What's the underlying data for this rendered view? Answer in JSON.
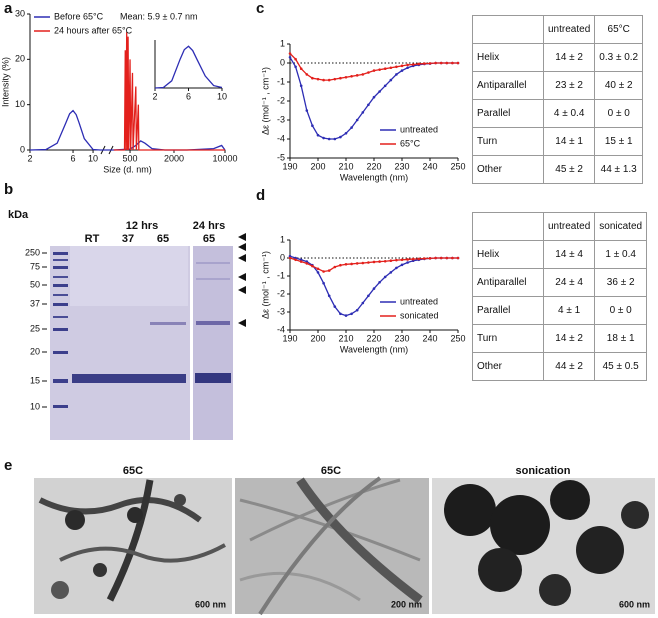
{
  "panel_labels": [
    "a",
    "b",
    "c",
    "d",
    "e"
  ],
  "chart_data": [
    {
      "type": "line",
      "y_label": "Intensity (%)",
      "x_label": "Size (d. nm)",
      "annotation": "Mean: 5.9 ± 0.7 nm",
      "log_x": true,
      "xlim": [
        2,
        10000
      ],
      "xbreak": [
        12,
        300
      ],
      "xticks": [
        2,
        6,
        10,
        500,
        2000,
        10000
      ],
      "ylim": [
        0,
        30
      ],
      "yticks": [
        0,
        10,
        20,
        30
      ],
      "legend": "upper left",
      "series": [
        {
          "name": "Before 65°C",
          "color": "#2d2db4",
          "x": [
            2,
            3,
            4,
            5,
            5.5,
            6,
            6.5,
            7,
            8,
            10,
            12,
            300,
            500,
            600,
            700,
            800,
            1000,
            1500,
            3000,
            7000,
            9000,
            10000
          ],
          "values": [
            0,
            0.1,
            1.5,
            6,
            8,
            8.7,
            7.8,
            6,
            2.5,
            0.1,
            0,
            0,
            0.2,
            1,
            2,
            1.5,
            0.3,
            0,
            0,
            0.3,
            1,
            0
          ]
        },
        {
          "name": "24 hours after 65°C",
          "color": "#e3201c",
          "x": [
            300,
            420,
            430,
            440,
            450,
            460,
            470,
            480,
            500,
            510,
            540,
            550,
            600,
            610,
            650,
            660,
            10000
          ],
          "values": [
            0,
            0,
            22,
            0,
            26,
            0,
            25,
            0,
            20,
            0,
            17,
            0,
            14,
            0,
            10,
            0,
            0
          ]
        }
      ]
    },
    {
      "type": "line",
      "xlim": [
        2,
        10
      ],
      "xticks": [
        2,
        6,
        10
      ],
      "ylim": [
        0,
        10
      ],
      "series": [
        {
          "color": "#2d2db4",
          "x": [
            2,
            3,
            4,
            5,
            5.5,
            6,
            6.5,
            7,
            8,
            9,
            10
          ],
          "values": [
            0,
            0.1,
            1.5,
            6,
            8,
            8.7,
            7.8,
            6,
            2.5,
            0.5,
            0.1
          ]
        }
      ]
    },
    {
      "type": "line",
      "y_label": "Δε (mol⁻¹ , cm⁻¹)",
      "x_label": "Wavelength (nm)",
      "markers": true,
      "zero_line": true,
      "xlim": [
        190,
        250
      ],
      "xticks": [
        190,
        200,
        210,
        220,
        230,
        240,
        250
      ],
      "ylim": [
        -5,
        1
      ],
      "yticks": [
        -5,
        -4,
        -3,
        -2,
        -1,
        0,
        1
      ],
      "legend": "lower right",
      "x": [
        190,
        192,
        194,
        196,
        198,
        200,
        202,
        204,
        206,
        208,
        210,
        212,
        214,
        216,
        218,
        220,
        222,
        224,
        226,
        228,
        230,
        232,
        234,
        236,
        238,
        240,
        242,
        244,
        246,
        248,
        250
      ],
      "series": [
        {
          "name": "untreated",
          "color": "#2d2db4",
          "values": [
            0.3,
            -0.2,
            -1.2,
            -2.5,
            -3.3,
            -3.8,
            -3.95,
            -4.0,
            -4.0,
            -3.9,
            -3.7,
            -3.4,
            -3.0,
            -2.6,
            -2.2,
            -1.8,
            -1.5,
            -1.2,
            -0.9,
            -0.6,
            -0.4,
            -0.25,
            -0.15,
            -0.1,
            -0.05,
            -0.03,
            0,
            0,
            0,
            0,
            0
          ]
        },
        {
          "name": "65°C",
          "color": "#e3201c",
          "values": [
            0.5,
            0.2,
            -0.3,
            -0.6,
            -0.8,
            -0.85,
            -0.9,
            -0.9,
            -0.85,
            -0.8,
            -0.75,
            -0.7,
            -0.65,
            -0.6,
            -0.5,
            -0.4,
            -0.35,
            -0.3,
            -0.25,
            -0.2,
            -0.15,
            -0.1,
            -0.08,
            -0.05,
            -0.03,
            -0.02,
            0,
            0,
            0,
            0,
            0
          ]
        }
      ]
    },
    {
      "type": "line",
      "y_label": "Δε (mol⁻¹ , cm⁻¹)",
      "x_label": "Wavelength (nm)",
      "markers": true,
      "zero_line": true,
      "xlim": [
        190,
        250
      ],
      "xticks": [
        190,
        200,
        210,
        220,
        230,
        240,
        250
      ],
      "ylim": [
        -4,
        1
      ],
      "yticks": [
        -4,
        -3,
        -2,
        -1,
        0,
        1
      ],
      "legend": "lower right",
      "x": [
        190,
        192,
        194,
        196,
        198,
        200,
        202,
        204,
        206,
        208,
        210,
        212,
        214,
        216,
        218,
        220,
        222,
        224,
        226,
        228,
        230,
        232,
        234,
        236,
        238,
        240,
        242,
        244,
        246,
        248,
        250
      ],
      "series": [
        {
          "name": "untreated",
          "color": "#2d2db4",
          "values": [
            0.1,
            0,
            -0.1,
            -0.2,
            -0.4,
            -0.8,
            -1.4,
            -2.1,
            -2.7,
            -3.1,
            -3.2,
            -3.1,
            -2.9,
            -2.5,
            -2.1,
            -1.7,
            -1.35,
            -1.05,
            -0.8,
            -0.55,
            -0.38,
            -0.25,
            -0.15,
            -0.1,
            -0.05,
            -0.02,
            0,
            0,
            0,
            0,
            0
          ]
        },
        {
          "name": "sonicated",
          "color": "#e3201c",
          "values": [
            0,
            -0.1,
            -0.2,
            -0.3,
            -0.45,
            -0.6,
            -0.75,
            -0.7,
            -0.5,
            -0.4,
            -0.35,
            -0.33,
            -0.3,
            -0.28,
            -0.25,
            -0.22,
            -0.2,
            -0.18,
            -0.15,
            -0.12,
            -0.1,
            -0.08,
            -0.06,
            -0.05,
            -0.03,
            -0.02,
            0,
            0,
            0,
            0,
            0
          ]
        }
      ]
    }
  ],
  "tables": [
    {
      "columns": [
        "untreated",
        "65°C"
      ],
      "rows": [
        [
          "Helix",
          "14 ± 2",
          "0.3 ± 0.2"
        ],
        [
          "Antiparallel",
          "23 ± 2",
          "40 ± 2"
        ],
        [
          "Parallel",
          "4 ± 0.4",
          "0 ± 0"
        ],
        [
          "Turn",
          "14 ± 1",
          "15 ± 1"
        ],
        [
          "Other",
          "45 ± 2",
          "44 ± 1.3"
        ]
      ]
    },
    {
      "columns": [
        "untreated",
        "sonicated"
      ],
      "rows": [
        [
          "Helix",
          "14 ± 4",
          "1 ± 0.4"
        ],
        [
          "Antiparallel",
          "24 ± 4",
          "36 ± 2"
        ],
        [
          "Parallel",
          "4 ± 1",
          "0 ± 0"
        ],
        [
          "Turn",
          "14 ± 2",
          "18 ± 1"
        ],
        [
          "Other",
          "44 ± 2",
          "45 ± 0.5"
        ]
      ]
    }
  ],
  "gel": {
    "unit": "kDa",
    "markers": [
      "250",
      "75",
      "50",
      "37",
      "25",
      "20",
      "15",
      "10"
    ],
    "groups": [
      "12 hrs",
      "24 hrs"
    ],
    "lanes": [
      "RT",
      "37",
      "65",
      "65"
    ]
  },
  "tem": [
    {
      "title": "65C",
      "scale_bar": "600 nm"
    },
    {
      "title": "65C",
      "scale_bar": "200 nm"
    },
    {
      "title": "sonication",
      "scale_bar": "600 nm"
    }
  ]
}
